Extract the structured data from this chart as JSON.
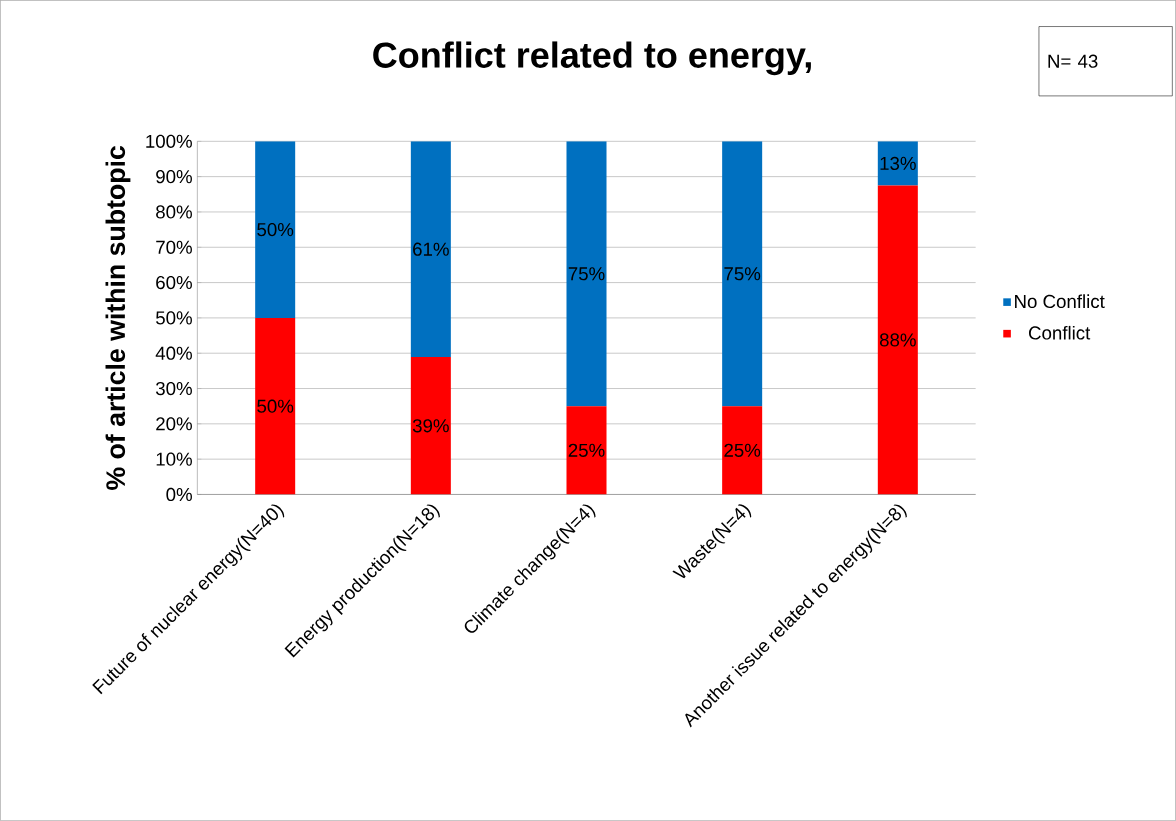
{
  "chart_data": {
    "type": "bar",
    "title": "Conflict related to energy,",
    "ylabel": "% of article within subtopic",
    "categories": [
      "Future of nuclear energy(N=40)",
      "Energy production(N=18)",
      "Climate change(N=4)",
      "Waste(N=4)",
      "Another issue related to energy(N=8)"
    ],
    "stacked": true,
    "series": [
      {
        "name": "Conflict",
        "color": "#ff0000",
        "values": [
          50,
          38.9,
          25,
          25,
          87.5
        ],
        "value_labels": [
          "50%",
          "39%",
          "25%",
          "25%",
          "88%"
        ]
      },
      {
        "name": "No Conflict",
        "color": "#0070c0",
        "values": [
          50,
          61.1,
          75,
          75,
          12.5
        ],
        "value_labels": [
          "50%",
          "61%",
          "75%",
          "75%",
          "13%"
        ]
      }
    ],
    "ylim": [
      0,
      100
    ],
    "yticks": [
      {
        "value": 0,
        "label": "0%"
      },
      {
        "value": 10,
        "label": "10%"
      },
      {
        "value": 20,
        "label": "20%"
      },
      {
        "value": 30,
        "label": "30%"
      },
      {
        "value": 40,
        "label": "40%"
      },
      {
        "value": 50,
        "label": "50%"
      },
      {
        "value": 60,
        "label": "60%"
      },
      {
        "value": 70,
        "label": "70%"
      },
      {
        "value": 80,
        "label": "80%"
      },
      {
        "value": 90,
        "label": "90%"
      },
      {
        "value": 100,
        "label": "100%"
      }
    ],
    "grid": "y",
    "legend": "right",
    "annotations": [
      "N= 43"
    ]
  }
}
